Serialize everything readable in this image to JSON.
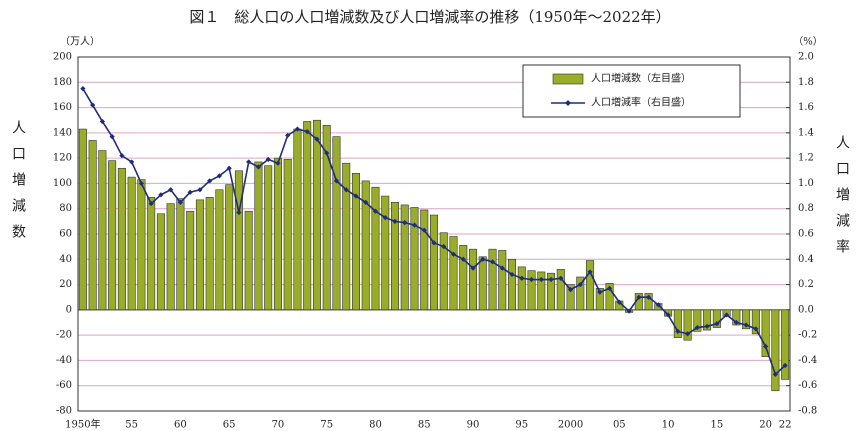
{
  "chart_data": {
    "type": "bar-line",
    "title": "図１　総人口の人口増減数及び人口増減率の推移（1950年～2022年）",
    "y_label": "人口増減数",
    "y2_label": "人口増減率",
    "y_unit": "（万人）",
    "y2_unit": "（%）",
    "categories": [
      "1950年",
      null,
      null,
      null,
      null,
      "55",
      null,
      null,
      null,
      null,
      "60",
      null,
      null,
      null,
      null,
      "65",
      null,
      null,
      null,
      null,
      "70",
      null,
      null,
      null,
      null,
      "75",
      null,
      null,
      null,
      null,
      "80",
      null,
      null,
      null,
      null,
      "85",
      null,
      null,
      null,
      null,
      "90",
      null,
      null,
      null,
      null,
      "95",
      null,
      null,
      null,
      null,
      "2000",
      null,
      null,
      null,
      null,
      "05",
      null,
      null,
      null,
      null,
      "10",
      null,
      null,
      null,
      null,
      "15",
      null,
      null,
      null,
      null,
      "20",
      null,
      "22"
    ],
    "series": [
      {
        "name": "人口増減数（左目盛）",
        "color": "#9aad2a",
        "values": [
          143,
          134,
          126,
          118,
          112,
          105,
          103,
          89,
          76,
          84,
          88,
          78,
          87,
          89,
          95,
          99,
          110,
          78,
          117,
          114,
          120,
          119,
          143,
          149,
          150,
          146,
          137,
          116,
          108,
          102,
          97,
          90,
          85,
          83,
          81,
          79,
          75,
          61,
          58,
          51,
          48,
          42,
          48,
          47,
          40,
          34,
          31,
          30,
          29,
          32,
          20,
          26,
          39,
          17,
          21,
          7,
          -2,
          13,
          13,
          5,
          -5,
          -22,
          -24,
          -17,
          -16,
          -14,
          -5,
          -12,
          -15,
          -19,
          -37,
          -64,
          -55
        ]
      },
      {
        "name": "人口増減率（右目盛）",
        "color": "#1f2d7a",
        "axis": "y2",
        "values": [
          1.75,
          1.62,
          1.49,
          1.37,
          1.22,
          1.17,
          1.0,
          0.84,
          0.91,
          0.95,
          0.85,
          0.93,
          0.95,
          1.02,
          1.06,
          1.12,
          0.77,
          1.17,
          1.13,
          1.19,
          1.16,
          1.38,
          1.43,
          1.41,
          1.35,
          1.24,
          1.02,
          0.95,
          0.9,
          0.85,
          0.78,
          0.73,
          0.7,
          0.69,
          0.67,
          0.63,
          0.53,
          0.5,
          0.44,
          0.4,
          0.33,
          0.4,
          0.38,
          0.33,
          0.28,
          0.25,
          0.24,
          0.24,
          0.24,
          0.25,
          0.16,
          0.2,
          0.3,
          0.14,
          0.17,
          0.06,
          -0.01,
          0.1,
          0.1,
          0.04,
          -0.04,
          -0.17,
          -0.19,
          -0.14,
          -0.13,
          -0.11,
          -0.04,
          -0.1,
          -0.12,
          -0.15,
          -0.29,
          -0.51,
          -0.44
        ]
      }
    ],
    "ylim": [
      -80,
      200
    ],
    "yticks": [
      -80,
      -60,
      -40,
      -20,
      0,
      20,
      40,
      60,
      80,
      100,
      120,
      140,
      160,
      180,
      200
    ],
    "y2lim": [
      -0.8,
      2.0
    ],
    "y2ticks": [
      -0.8,
      -0.6,
      -0.4,
      -0.2,
      {
        "value": 0,
        "label": "0.0"
      },
      0.2,
      0.4,
      0.6,
      0.8,
      {
        "value": 1,
        "label": "1.0"
      },
      1.2,
      1.4,
      1.6,
      1.8,
      {
        "value": 2,
        "label": "2.0"
      }
    ],
    "grid": true,
    "legend": "top-right"
  }
}
